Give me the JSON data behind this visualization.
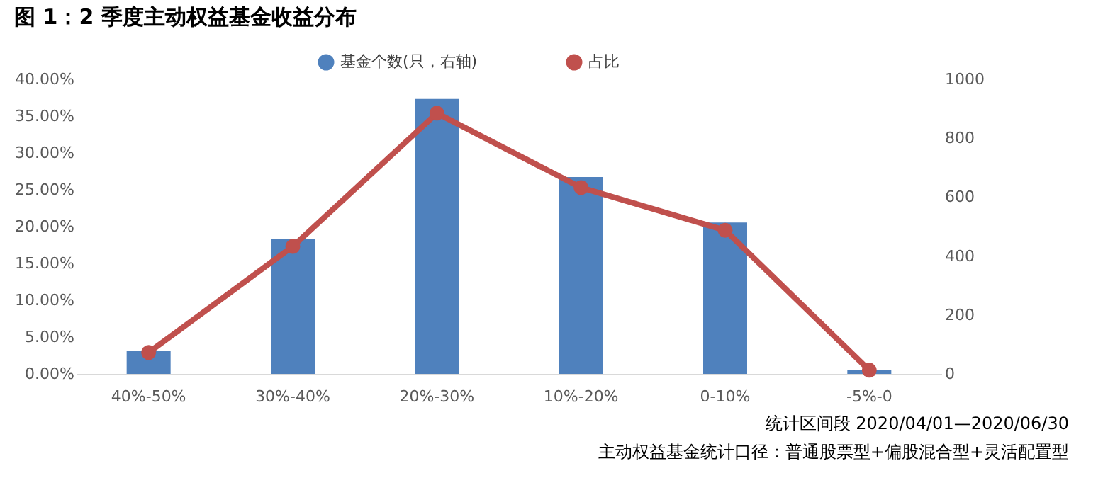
{
  "chart_data": {
    "type": "bar",
    "title": "图 1：2 季度主动权益基金收益分布",
    "categories": [
      "40%-50%",
      "30%-40%",
      "20%-30%",
      "10%-20%",
      "0-10%",
      "-5%-0"
    ],
    "series": [
      {
        "name": "基金个数(只，右轴)",
        "axis": "y2",
        "color": "#4f81bd",
        "values": [
          77,
          457,
          933,
          668,
          514,
          14
        ]
      },
      {
        "name": "占比",
        "type": "line",
        "color": "#c0504d",
        "marker": "circle",
        "values": [
          2.9,
          17.3,
          35.4,
          25.3,
          19.5,
          0.5
        ]
      }
    ],
    "ylim": [
      0,
      40
    ],
    "yticks": [
      {
        "value": 0,
        "label": "0.00%"
      },
      {
        "value": 5,
        "label": "5.00%"
      },
      {
        "value": 10,
        "label": "10.00%"
      },
      {
        "value": 15,
        "label": "15.00%"
      },
      {
        "value": 20,
        "label": "20.00%"
      },
      {
        "value": 25,
        "label": "25.00%"
      },
      {
        "value": 30,
        "label": "30.00%"
      },
      {
        "value": 35,
        "label": "35.00%"
      },
      {
        "value": 40,
        "label": "40.00%"
      }
    ],
    "y2lim": [
      0,
      1000
    ],
    "y2ticks": [
      0,
      200,
      400,
      600,
      800,
      1000
    ],
    "grid": false,
    "legend": "top",
    "annotations": [
      "统计区间段 2020/04/01—2020/06/30",
      "主动权益基金统计口径：普通股票型+偏股混合型+灵活配置型"
    ]
  }
}
